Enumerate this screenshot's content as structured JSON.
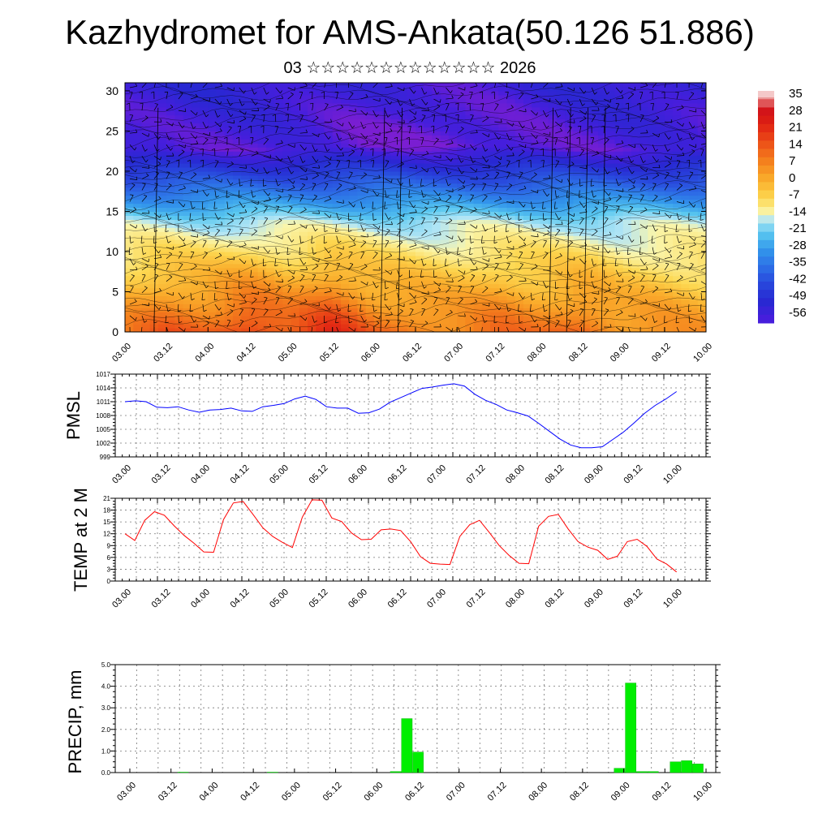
{
  "title": "Kazhydromet for AMS-Ankata(50.126 51.886)",
  "subtitle": "03 ☆☆☆☆☆☆☆☆☆☆☆☆☆ 2026",
  "x_ticks": [
    "03.00",
    "03.12",
    "04.00",
    "04.12",
    "05.00",
    "05.12",
    "06.00",
    "06.12",
    "07.00",
    "07.12",
    "08.00",
    "08.12",
    "09.00",
    "09.12",
    "10.00"
  ],
  "chart_data": [
    {
      "type": "heatmap",
      "ylim": [
        0,
        31
      ],
      "y_ticks": [
        0,
        5,
        10,
        15,
        20,
        25,
        30
      ],
      "colorbar": {
        "labels": [
          "35",
          "28",
          "21",
          "14",
          "7",
          "0",
          "-7",
          "-14",
          "-21",
          "-28",
          "-35",
          "-42",
          "-49",
          "-56"
        ],
        "colors": [
          "#f4c8c8",
          "#e01818",
          "#e83a1c",
          "#f06a20",
          "#f89a2a",
          "#fcc840",
          "#fff4a8",
          "#b8e8f8",
          "#58c8f4",
          "#38a0e8",
          "#3878dc",
          "#3448d0",
          "#3a28c8",
          "#8828d8"
        ]
      },
      "surface_temp_by_time": [
        {
          "x": "03.00",
          "t": 8
        },
        {
          "x": "03.12",
          "t": 14
        },
        {
          "x": "04.00",
          "t": 13
        },
        {
          "x": "04.12",
          "t": 20
        },
        {
          "x": "05.00",
          "t": 14
        },
        {
          "x": "05.12",
          "t": 22
        },
        {
          "x": "06.00",
          "t": 12
        },
        {
          "x": "06.12",
          "t": 10
        },
        {
          "x": "07.00",
          "t": 8
        },
        {
          "x": "07.12",
          "t": 12
        },
        {
          "x": "08.00",
          "t": 9
        },
        {
          "x": "08.12",
          "t": 13
        },
        {
          "x": "09.00",
          "t": 6
        },
        {
          "x": "09.12",
          "t": 6
        },
        {
          "x": "10.00",
          "t": 4
        }
      ]
    },
    {
      "type": "line",
      "ylabel": "PMSL",
      "ylim": [
        999,
        1017
      ],
      "y_ticks": [
        999,
        1002,
        1005,
        1008,
        1011,
        1014,
        1017
      ],
      "color": "#0000ff",
      "values": [
        1011.0,
        1011.2,
        1011.0,
        1009.8,
        1009.7,
        1009.9,
        1009.2,
        1008.7,
        1009.2,
        1009.3,
        1009.6,
        1009.0,
        1008.9,
        1009.9,
        1010.2,
        1010.6,
        1011.6,
        1012.2,
        1011.5,
        1009.9,
        1009.6,
        1009.6,
        1008.5,
        1008.6,
        1009.4,
        1010.9,
        1011.9,
        1012.9,
        1013.9,
        1014.2,
        1014.6,
        1014.9,
        1014.4,
        1012.6,
        1011.3,
        1010.4,
        1009.2,
        1008.6,
        1007.9,
        1006.3,
        1004.6,
        1002.9,
        1001.6,
        1001.0,
        1001.0,
        1001.2,
        1002.8,
        1004.4,
        1006.4,
        1008.5,
        1010.2,
        1011.6,
        1013.2
      ]
    },
    {
      "type": "line",
      "ylabel": "TEMP at 2 M",
      "ylim": [
        0,
        21
      ],
      "y_ticks": [
        0,
        3,
        6,
        9,
        12,
        15,
        18,
        21
      ],
      "color": "#ff0000",
      "values": [
        12.0,
        10.3,
        15.4,
        17.6,
        16.7,
        14.0,
        11.6,
        9.6,
        7.4,
        7.3,
        15.6,
        19.8,
        20.2,
        16.9,
        13.5,
        11.3,
        9.8,
        8.5,
        16.2,
        20.6,
        20.5,
        16.0,
        15.1,
        12.2,
        10.5,
        10.6,
        13.0,
        13.2,
        12.8,
        10.0,
        6.2,
        4.5,
        4.3,
        4.2,
        11.3,
        14.3,
        15.4,
        12.3,
        9.0,
        6.5,
        4.5,
        4.4,
        13.9,
        16.4,
        16.9,
        13.2,
        10.0,
        8.6,
        7.8,
        5.5,
        6.3,
        10.0,
        10.6,
        8.8,
        5.6,
        4.3,
        2.3
      ]
    },
    {
      "type": "bar",
      "ylabel": "PRECIP, mm",
      "ylim": [
        0,
        5
      ],
      "y_ticks": [
        "0.0",
        "1.0",
        "2.0",
        "3.0",
        "4.0",
        "5.0"
      ],
      "color": "#00ee00",
      "values": [
        0,
        0,
        0,
        0,
        0,
        0.02,
        0,
        0,
        0,
        0,
        0,
        0,
        0,
        0.02,
        0,
        0,
        0,
        0,
        0,
        0,
        0,
        0,
        0,
        0,
        0.05,
        2.5,
        0.95,
        0,
        0,
        0,
        0,
        0,
        0,
        0,
        0,
        0,
        0,
        0,
        0,
        0,
        0,
        0,
        0,
        0,
        0.2,
        4.15,
        0.05,
        0.05,
        0,
        0.5,
        0.55,
        0.4,
        0
      ]
    }
  ]
}
